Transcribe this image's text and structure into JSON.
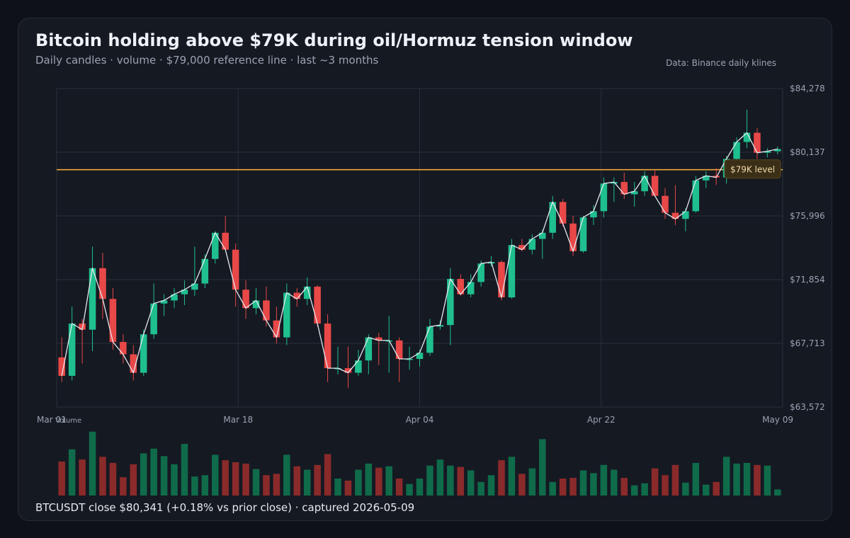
{
  "header": {
    "title": "Bitcoin holding above $79K during oil/Hormuz tension window",
    "subtitle": "Daily candles · volume · $79,000 reference line · last ~3 months",
    "source": "Data: Binance daily klines"
  },
  "footer": {
    "caption": "BTCUSDT close $80,341  (+0.18% vs prior close) · captured 2026-05-09"
  },
  "colors": {
    "up": "#1fbf8f",
    "down": "#e84848",
    "vol_up": "#0f6b4a",
    "vol_down": "#8a2a2a",
    "close_line": "#e6e9ef",
    "ref_line": "#f0a63a",
    "grid": "#2a2f3a"
  },
  "chart_data": {
    "type": "candlestick",
    "x_ticks": [
      "Mar 01",
      "Mar 18",
      "Apr 04",
      "Apr 22",
      "May 09"
    ],
    "y_ticks": [
      "$84,278",
      "$80,137",
      "$75,996",
      "$71,854",
      "$67,713",
      "$63,572"
    ],
    "ylim": [
      63572,
      84278
    ],
    "reference_line": {
      "value": 79000,
      "label": "$79K level"
    },
    "volume_label": "Volume",
    "grid": true,
    "candles": [
      {
        "o": 66800,
        "h": 68100,
        "l": 65200,
        "c": 65600,
        "v": 0.5
      },
      {
        "o": 65600,
        "h": 70100,
        "l": 65300,
        "c": 69000,
        "v": 0.68
      },
      {
        "o": 69000,
        "h": 69300,
        "l": 66400,
        "c": 68600,
        "v": 0.53
      },
      {
        "o": 68600,
        "h": 74000,
        "l": 67200,
        "c": 72600,
        "v": 0.94
      },
      {
        "o": 72600,
        "h": 73600,
        "l": 69300,
        "c": 70600,
        "v": 0.57
      },
      {
        "o": 70600,
        "h": 71300,
        "l": 67300,
        "c": 67800,
        "v": 0.48
      },
      {
        "o": 67800,
        "h": 68300,
        "l": 66400,
        "c": 67000,
        "v": 0.27
      },
      {
        "o": 67000,
        "h": 67600,
        "l": 65300,
        "c": 65800,
        "v": 0.46
      },
      {
        "o": 65800,
        "h": 68600,
        "l": 65600,
        "c": 68300,
        "v": 0.62
      },
      {
        "o": 68300,
        "h": 71600,
        "l": 68000,
        "c": 70300,
        "v": 0.69
      },
      {
        "o": 70300,
        "h": 70900,
        "l": 69500,
        "c": 70500,
        "v": 0.58
      },
      {
        "o": 70500,
        "h": 71300,
        "l": 70000,
        "c": 70900,
        "v": 0.46
      },
      {
        "o": 70900,
        "h": 71800,
        "l": 70200,
        "c": 71200,
        "v": 0.76
      },
      {
        "o": 71200,
        "h": 74000,
        "l": 70800,
        "c": 71600,
        "v": 0.28
      },
      {
        "o": 71600,
        "h": 73500,
        "l": 71300,
        "c": 73200,
        "v": 0.3
      },
      {
        "o": 73200,
        "h": 75000,
        "l": 72900,
        "c": 74900,
        "v": 0.6
      },
      {
        "o": 74900,
        "h": 76000,
        "l": 73900,
        "c": 73800,
        "v": 0.52
      },
      {
        "o": 73800,
        "h": 74200,
        "l": 70100,
        "c": 71200,
        "v": 0.49
      },
      {
        "o": 71200,
        "h": 71800,
        "l": 69300,
        "c": 70000,
        "v": 0.47
      },
      {
        "o": 70000,
        "h": 71300,
        "l": 69600,
        "c": 70500,
        "v": 0.39
      },
      {
        "o": 70500,
        "h": 71400,
        "l": 68800,
        "c": 69200,
        "v": 0.3
      },
      {
        "o": 69200,
        "h": 70100,
        "l": 67700,
        "c": 68100,
        "v": 0.32
      },
      {
        "o": 68100,
        "h": 71600,
        "l": 67600,
        "c": 71000,
        "v": 0.6
      },
      {
        "o": 71000,
        "h": 71300,
        "l": 70100,
        "c": 70600,
        "v": 0.43
      },
      {
        "o": 70600,
        "h": 72000,
        "l": 70200,
        "c": 71400,
        "v": 0.38
      },
      {
        "o": 71400,
        "h": 71500,
        "l": 68800,
        "c": 69000,
        "v": 0.45
      },
      {
        "o": 69000,
        "h": 69600,
        "l": 65200,
        "c": 66100,
        "v": 0.61
      },
      {
        "o": 66100,
        "h": 67500,
        "l": 65700,
        "c": 66100,
        "v": 0.25
      },
      {
        "o": 66100,
        "h": 67500,
        "l": 64800,
        "c": 65800,
        "v": 0.22
      },
      {
        "o": 65800,
        "h": 67300,
        "l": 65600,
        "c": 66600,
        "v": 0.38
      },
      {
        "o": 66600,
        "h": 68300,
        "l": 65700,
        "c": 68100,
        "v": 0.47
      },
      {
        "o": 68100,
        "h": 68400,
        "l": 66300,
        "c": 67900,
        "v": 0.41
      },
      {
        "o": 67900,
        "h": 69500,
        "l": 65800,
        "c": 67900,
        "v": 0.43
      },
      {
        "o": 67900,
        "h": 68100,
        "l": 65200,
        "c": 66700,
        "v": 0.25
      },
      {
        "o": 66700,
        "h": 67500,
        "l": 66000,
        "c": 66700,
        "v": 0.17
      },
      {
        "o": 66700,
        "h": 67300,
        "l": 66200,
        "c": 67100,
        "v": 0.25
      },
      {
        "o": 67100,
        "h": 69300,
        "l": 66900,
        "c": 68800,
        "v": 0.44
      },
      {
        "o": 68800,
        "h": 69200,
        "l": 68600,
        "c": 68900,
        "v": 0.53
      },
      {
        "o": 68900,
        "h": 72600,
        "l": 67600,
        "c": 71900,
        "v": 0.44
      },
      {
        "o": 71900,
        "h": 72200,
        "l": 70800,
        "c": 70900,
        "v": 0.42
      },
      {
        "o": 70900,
        "h": 72200,
        "l": 70700,
        "c": 71700,
        "v": 0.37
      },
      {
        "o": 71700,
        "h": 73100,
        "l": 71400,
        "c": 72900,
        "v": 0.2
      },
      {
        "o": 72900,
        "h": 73400,
        "l": 72700,
        "c": 73000,
        "v": 0.3
      },
      {
        "o": 73000,
        "h": 73100,
        "l": 70500,
        "c": 70700,
        "v": 0.52
      },
      {
        "o": 70700,
        "h": 74500,
        "l": 70600,
        "c": 74100,
        "v": 0.57
      },
      {
        "o": 74100,
        "h": 74500,
        "l": 73700,
        "c": 73800,
        "v": 0.32
      },
      {
        "o": 73800,
        "h": 74800,
        "l": 73500,
        "c": 74500,
        "v": 0.4
      },
      {
        "o": 74500,
        "h": 75100,
        "l": 73200,
        "c": 74900,
        "v": 0.83
      },
      {
        "o": 74900,
        "h": 77300,
        "l": 74500,
        "c": 76900,
        "v": 0.2
      },
      {
        "o": 76900,
        "h": 77100,
        "l": 75300,
        "c": 75500,
        "v": 0.25
      },
      {
        "o": 75500,
        "h": 76000,
        "l": 73400,
        "c": 73700,
        "v": 0.26
      },
      {
        "o": 73700,
        "h": 76000,
        "l": 73600,
        "c": 75900,
        "v": 0.37
      },
      {
        "o": 75900,
        "h": 76700,
        "l": 75400,
        "c": 76300,
        "v": 0.33
      },
      {
        "o": 76300,
        "h": 78500,
        "l": 75900,
        "c": 78100,
        "v": 0.45
      },
      {
        "o": 78100,
        "h": 78500,
        "l": 76900,
        "c": 78200,
        "v": 0.38
      },
      {
        "o": 78200,
        "h": 78800,
        "l": 77100,
        "c": 77400,
        "v": 0.26
      },
      {
        "o": 77400,
        "h": 78200,
        "l": 76600,
        "c": 77600,
        "v": 0.15
      },
      {
        "o": 77600,
        "h": 78900,
        "l": 77300,
        "c": 78600,
        "v": 0.18
      },
      {
        "o": 78600,
        "h": 79000,
        "l": 77400,
        "c": 77300,
        "v": 0.4
      },
      {
        "o": 77300,
        "h": 77800,
        "l": 75800,
        "c": 76200,
        "v": 0.3
      },
      {
        "o": 76200,
        "h": 78000,
        "l": 75400,
        "c": 75800,
        "v": 0.45
      },
      {
        "o": 75800,
        "h": 76500,
        "l": 75000,
        "c": 76300,
        "v": 0.19
      },
      {
        "o": 76300,
        "h": 78600,
        "l": 76200,
        "c": 78300,
        "v": 0.48
      },
      {
        "o": 78300,
        "h": 78900,
        "l": 77800,
        "c": 78600,
        "v": 0.16
      },
      {
        "o": 78600,
        "h": 79100,
        "l": 78000,
        "c": 78500,
        "v": 0.2
      },
      {
        "o": 78500,
        "h": 79900,
        "l": 78100,
        "c": 79700,
        "v": 0.57
      },
      {
        "o": 79700,
        "h": 81100,
        "l": 79300,
        "c": 80800,
        "v": 0.47
      },
      {
        "o": 80800,
        "h": 82900,
        "l": 80400,
        "c": 81400,
        "v": 0.48
      },
      {
        "o": 81400,
        "h": 81700,
        "l": 79700,
        "c": 80100,
        "v": 0.45
      },
      {
        "o": 80100,
        "h": 80400,
        "l": 79800,
        "c": 80200,
        "v": 0.44
      },
      {
        "o": 80200,
        "h": 80500,
        "l": 80000,
        "c": 80341,
        "v": 0.09
      }
    ]
  }
}
